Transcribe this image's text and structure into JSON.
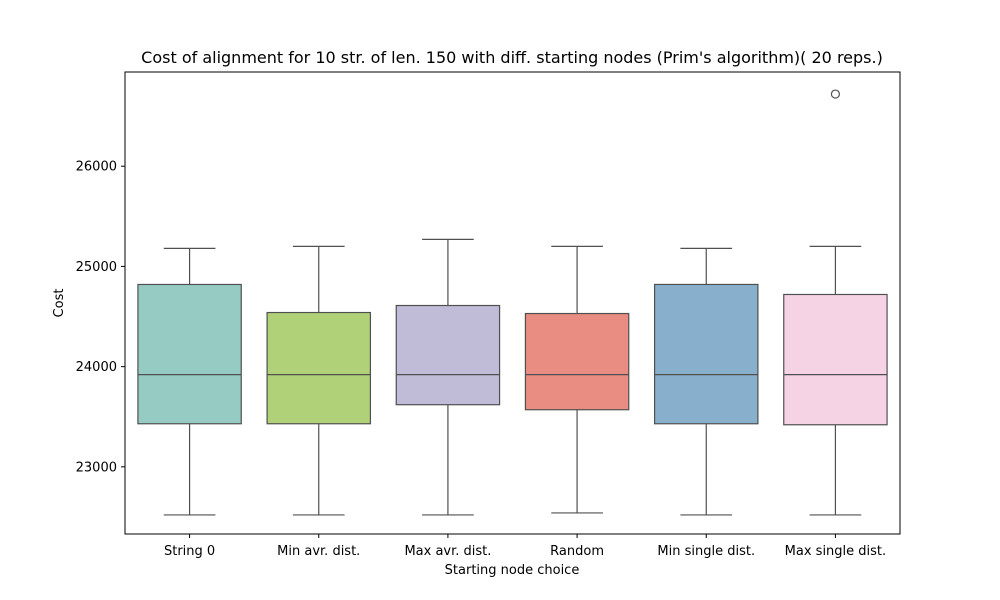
{
  "chart_data": {
    "type": "box",
    "title": "Cost of alignment for 10 str. of len. 150 with diff. starting nodes (Prim's algorithm)( 20 reps.)",
    "xlabel": "Starting node choice",
    "ylabel": "Cost",
    "ylim": [
      22330,
      26940
    ],
    "yticks": [
      23000,
      24000,
      25000,
      26000
    ],
    "grid": false,
    "categories": [
      "String 0",
      "Min avr. dist.",
      "Max avr. dist.",
      "Random",
      "Min single dist.",
      "Max single dist."
    ],
    "colors": [
      "#96cbc3",
      "#b0d178",
      "#c0bbd6",
      "#e98c81",
      "#88afcc",
      "#f5d3e5"
    ],
    "boxes": [
      {
        "min": 22520,
        "q1": 23430,
        "median": 23920,
        "q3": 24820,
        "max": 25180,
        "outliers": []
      },
      {
        "min": 22520,
        "q1": 23430,
        "median": 23920,
        "q3": 24540,
        "max": 25200,
        "outliers": []
      },
      {
        "min": 22520,
        "q1": 23620,
        "median": 23920,
        "q3": 24610,
        "max": 25270,
        "outliers": []
      },
      {
        "min": 22540,
        "q1": 23570,
        "median": 23920,
        "q3": 24530,
        "max": 25200,
        "outliers": []
      },
      {
        "min": 22520,
        "q1": 23430,
        "median": 23920,
        "q3": 24820,
        "max": 25180,
        "outliers": []
      },
      {
        "min": 22520,
        "q1": 23420,
        "median": 23920,
        "q3": 24720,
        "max": 25200,
        "outliers": [
          26720
        ]
      }
    ]
  }
}
